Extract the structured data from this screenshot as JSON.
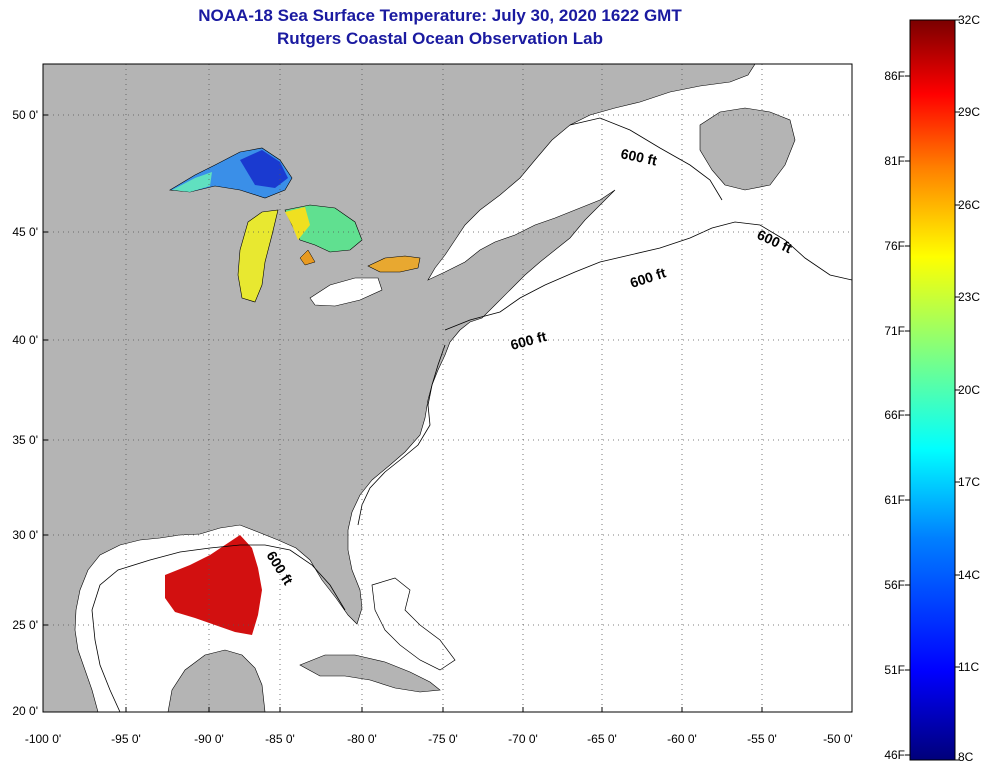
{
  "title_line1": "NOAA-18 Sea Surface Temperature:  July 30, 2020 1622 GMT",
  "title_line2": "Rutgers Coastal Ocean Observation Lab",
  "latitude_ticks": [
    "50 0'",
    "45 0'",
    "40 0'",
    "35 0'",
    "30 0'",
    "25 0'",
    "20 0'"
  ],
  "longitude_ticks": [
    "-100 0'",
    "-95 0'",
    "-90 0'",
    "-85 0'",
    "-80 0'",
    "-75 0'",
    "-70 0'",
    "-65 0'",
    "-60 0'",
    "-55 0'",
    "-50 0'"
  ],
  "depth_contour_labels": [
    "600 ft",
    "600 ft",
    "600 ft",
    "600 ft",
    "600 ft"
  ],
  "colorbar": {
    "celsius_labels": [
      "32C",
      "29C",
      "26C",
      "23C",
      "20C",
      "17C",
      "14C",
      "11C",
      "8C"
    ],
    "fahrenheit_labels": [
      "86F",
      "81F",
      "76F",
      "71F",
      "66F",
      "61F",
      "56F",
      "51F",
      "46F"
    ],
    "colors": [
      "#7a0000",
      "#ff0000",
      "#ff8000",
      "#ffff00",
      "#80ff80",
      "#00ffff",
      "#0080ff",
      "#0000ff",
      "#00007a"
    ]
  },
  "colors": {
    "land": "#b4b4b4",
    "water": "#ffffff",
    "title": "#1a1aa0"
  }
}
